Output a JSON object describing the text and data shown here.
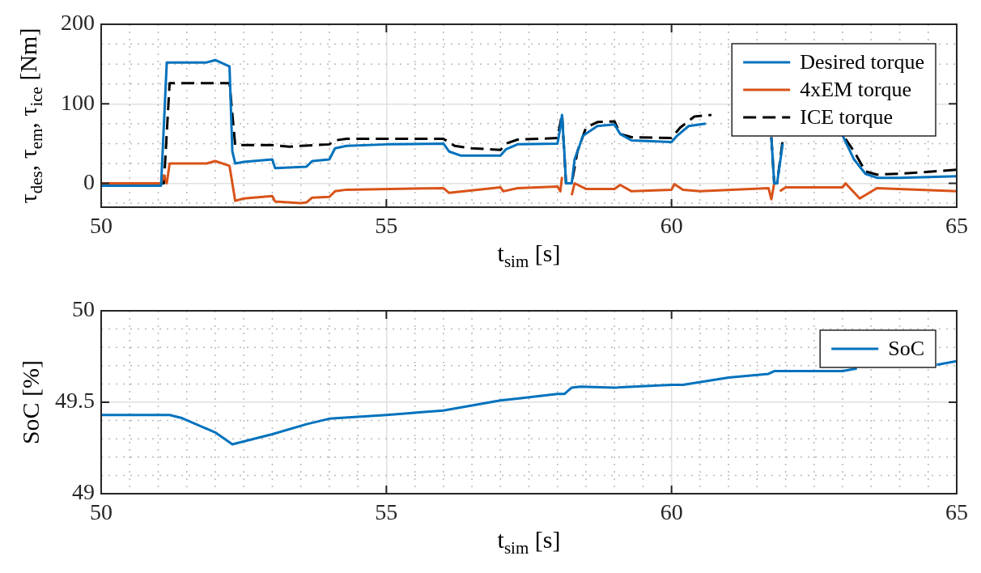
{
  "chart_data": [
    {
      "type": "line",
      "xlabel": "t$_{sim}$ [s]",
      "ylabel": "τ$_{des}$, τ$_{em}$, τ$_{ice}$ [Nm]",
      "grid": true,
      "legend": "top right",
      "marker": "none",
      "xlim": [
        50,
        65
      ],
      "ylim": [
        -30,
        200
      ],
      "xticks": [
        50,
        {
          "value": 50.5,
          "label": null
        },
        {
          "value": 51,
          "label": null
        },
        {
          "value": 51.5,
          "label": null
        },
        {
          "value": 52,
          "label": null
        },
        {
          "value": 52.5,
          "label": null
        },
        {
          "value": 53,
          "label": null
        },
        {
          "value": 53.5,
          "label": null
        },
        {
          "value": 54,
          "label": null
        },
        {
          "value": 54.5,
          "label": null
        },
        55,
        {
          "value": 55.5,
          "label": null
        },
        {
          "value": 56,
          "label": null
        },
        {
          "value": 56.5,
          "label": null
        },
        {
          "value": 57,
          "label": null
        },
        {
          "value": 57.5,
          "label": null
        },
        {
          "value": 58,
          "label": null
        },
        {
          "value": 58.5,
          "label": null
        },
        {
          "value": 59,
          "label": null
        },
        {
          "value": 59.5,
          "label": null
        },
        60,
        {
          "value": 60.5,
          "label": null
        },
        {
          "value": 61,
          "label": null
        },
        {
          "value": 61.5,
          "label": null
        },
        {
          "value": 62,
          "label": null
        },
        {
          "value": 62.5,
          "label": null
        },
        {
          "value": 63,
          "label": null
        },
        {
          "value": 63.5,
          "label": null
        },
        {
          "value": 64,
          "label": null
        },
        {
          "value": 64.5,
          "label": null
        },
        65
      ],
      "yticks": [
        {
          "value": -25,
          "label": null
        },
        0,
        {
          "value": 25,
          "label": null
        },
        {
          "value": 50,
          "label": null
        },
        {
          "value": 75,
          "label": null
        },
        100,
        {
          "value": 125,
          "label": null
        },
        {
          "value": 150,
          "label": null
        },
        {
          "value": 175,
          "label": null
        },
        200
      ],
      "series": [
        {
          "name": "Desired torque",
          "color": "#0072bd",
          "line_style": "solid",
          "x": [
            50,
            51.05,
            51.15,
            51.85,
            52.0,
            52.25,
            52.3,
            52.35,
            52.5,
            53.0,
            53.05,
            53.6,
            53.7,
            54.0,
            54.1,
            54.3,
            55,
            56.0,
            56.1,
            56.3,
            57.0,
            57.1,
            57.3,
            58.0,
            58.05,
            58.08,
            58.12,
            58.15,
            58.25,
            58.3,
            58.45,
            58.7,
            59.0,
            59.1,
            59.3,
            60.0,
            60.1,
            60.3,
            60.6,
            61.0,
            61.5,
            61.75,
            61.8,
            61.85,
            61.95,
            62.5,
            63.0,
            63.2,
            63.4,
            63.6,
            64,
            65
          ],
          "values": [
            -3,
            -3,
            152,
            152,
            155,
            147,
            40,
            25,
            27,
            30,
            19,
            21,
            28,
            30,
            44,
            47,
            49,
            50,
            40,
            35,
            35,
            43,
            49,
            50,
            70,
            86,
            40,
            0,
            0,
            30,
            60,
            72,
            74,
            62,
            54,
            52,
            60,
            72,
            75,
            null,
            null,
            58,
            0,
            0,
            50,
            null,
            60,
            30,
            12,
            7,
            7,
            9
          ]
        },
        {
          "name": "4xEM torque",
          "color": "#d95319",
          "line_style": "solid",
          "x": [
            50,
            51.05,
            51.1,
            51.15,
            51.2,
            51.85,
            52.0,
            52.25,
            52.3,
            52.35,
            52.5,
            53.0,
            53.05,
            53.5,
            53.6,
            53.7,
            54.0,
            54.1,
            54.3,
            56.0,
            56.1,
            57.0,
            57.05,
            57.3,
            58.0,
            58.05,
            58.08,
            58.12,
            58.2,
            58.25,
            58.3,
            58.5,
            59.0,
            59.1,
            59.3,
            60.0,
            60.05,
            60.2,
            60.5,
            61.7,
            61.75,
            61.8,
            61.85,
            61.9,
            62.0,
            63.0,
            63.05,
            63.3,
            63.6,
            65
          ],
          "values": [
            0,
            0,
            10,
            0,
            25,
            25,
            28,
            22,
            0,
            -22,
            -19,
            -16,
            -23,
            -25,
            -24,
            -18,
            -17,
            -10,
            -8,
            -6,
            -12,
            -5,
            -10,
            -6,
            -4,
            -10,
            8,
            null,
            null,
            -15,
            0,
            -7,
            -7,
            -2,
            -10,
            -8,
            -1,
            -8,
            -10,
            -6,
            -20,
            0,
            null,
            -10,
            -5,
            -5,
            0,
            -19,
            -6,
            -10
          ]
        },
        {
          "name": "ICE torque",
          "color": "#000000",
          "line_style": "dashed",
          "x": [
            50,
            51.1,
            51.2,
            52.25,
            52.35,
            53.0,
            53.3,
            53.5,
            54.0,
            54.1,
            54.3,
            56.0,
            56.2,
            56.5,
            57.0,
            57.1,
            57.3,
            58.0,
            58.08,
            58.15,
            58.25,
            58.35,
            58.5,
            58.7,
            59.0,
            59.1,
            59.3,
            60.0,
            60.15,
            60.4,
            60.7,
            61.3,
            61.75,
            61.8,
            61.85,
            61.95,
            62.5,
            63.05,
            63.2,
            63.4,
            63.6,
            64,
            65
          ],
          "values": [
            0,
            0,
            126,
            126,
            48,
            48,
            46,
            47,
            49,
            54,
            56,
            56,
            47,
            44,
            42,
            50,
            55,
            57,
            87,
            0,
            0,
            40,
            70,
            77,
            78,
            62,
            58,
            57,
            70,
            84,
            86,
            null,
            58,
            0,
            0,
            55,
            null,
            56,
            40,
            15,
            11,
            12,
            17
          ]
        }
      ]
    },
    {
      "type": "line",
      "xlabel": "t$_{sim}$ [s]",
      "ylabel": "SoC [%]",
      "grid": true,
      "legend": "top right",
      "marker": "none",
      "xlim": [
        50,
        65
      ],
      "ylim": [
        49,
        50
      ],
      "xticks": [
        50,
        {
          "value": 50.5,
          "label": null
        },
        {
          "value": 51,
          "label": null
        },
        {
          "value": 51.5,
          "label": null
        },
        {
          "value": 52,
          "label": null
        },
        {
          "value": 52.5,
          "label": null
        },
        {
          "value": 53,
          "label": null
        },
        {
          "value": 53.5,
          "label": null
        },
        {
          "value": 54,
          "label": null
        },
        {
          "value": 54.5,
          "label": null
        },
        55,
        {
          "value": 55.5,
          "label": null
        },
        {
          "value": 56,
          "label": null
        },
        {
          "value": 56.5,
          "label": null
        },
        {
          "value": 57,
          "label": null
        },
        {
          "value": 57.5,
          "label": null
        },
        {
          "value": 58,
          "label": null
        },
        {
          "value": 58.5,
          "label": null
        },
        {
          "value": 59,
          "label": null
        },
        {
          "value": 59.5,
          "label": null
        },
        60,
        {
          "value": 60.5,
          "label": null
        },
        {
          "value": 61,
          "label": null
        },
        {
          "value": 61.5,
          "label": null
        },
        {
          "value": 62,
          "label": null
        },
        {
          "value": 62.5,
          "label": null
        },
        {
          "value": 63,
          "label": null
        },
        {
          "value": 63.5,
          "label": null
        },
        {
          "value": 64,
          "label": null
        },
        {
          "value": 64.5,
          "label": null
        },
        65
      ],
      "yticks": [
        49,
        {
          "value": 49.1,
          "label": null
        },
        {
          "value": 49.2,
          "label": null
        },
        {
          "value": 49.3,
          "label": null
        },
        {
          "value": 49.4,
          "label": null
        },
        49.5,
        {
          "value": 49.6,
          "label": null
        },
        {
          "value": 49.7,
          "label": null
        },
        {
          "value": 49.8,
          "label": null
        },
        {
          "value": 49.9,
          "label": null
        },
        50
      ],
      "series": [
        {
          "name": "SoC",
          "color": "#0072bd",
          "line_style": "solid",
          "x": [
            50,
            51.2,
            51.4,
            52.0,
            52.3,
            53.0,
            53.6,
            54.0,
            55,
            56.0,
            57.0,
            57.3,
            58.0,
            58.12,
            58.25,
            58.4,
            59.0,
            60.0,
            60.2,
            61.0,
            61.7,
            61.8,
            63.0,
            63.25,
            64.0,
            64.65,
            65
          ],
          "values": [
            49.43,
            49.43,
            49.415,
            49.335,
            49.27,
            49.325,
            49.38,
            49.41,
            49.43,
            49.455,
            49.51,
            49.52,
            49.545,
            49.545,
            49.58,
            49.585,
            49.58,
            49.595,
            49.595,
            49.635,
            49.655,
            49.67,
            49.67,
            49.685,
            null,
            49.705,
            49.725
          ]
        }
      ]
    }
  ]
}
